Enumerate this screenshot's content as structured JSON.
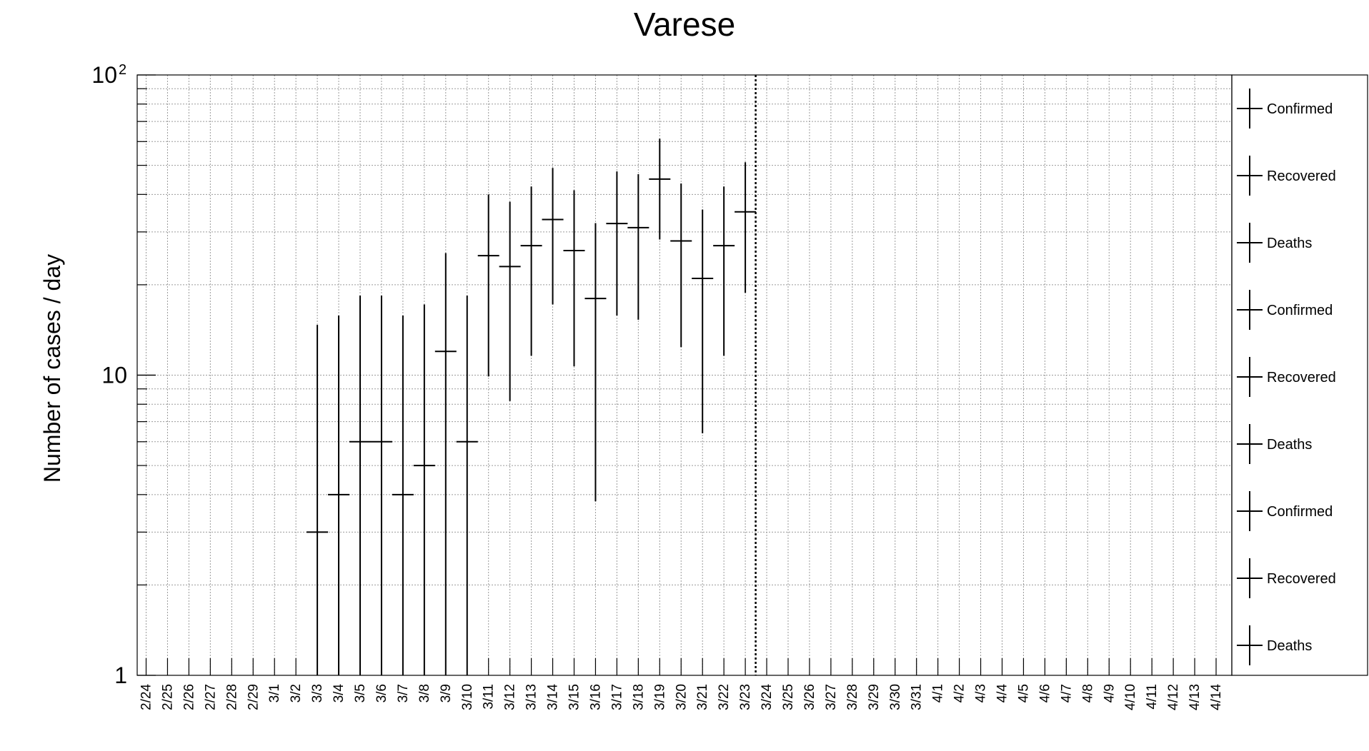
{
  "chart_data": {
    "type": "scatter",
    "title": "Varese",
    "xlabel": "",
    "ylabel": "Number of cases / day",
    "y_scale": "log",
    "ylim": [
      1,
      100
    ],
    "y_tick_labels": [
      {
        "value": 1,
        "base": "1",
        "exp": ""
      },
      {
        "value": 10,
        "base": "10",
        "exp": ""
      },
      {
        "value": 100,
        "base": "10",
        "exp": "2"
      }
    ],
    "grid": true,
    "legend_position": "right",
    "categories": [
      "2/24",
      "2/25",
      "2/26",
      "2/27",
      "2/28",
      "2/29",
      "3/1",
      "3/2",
      "3/3",
      "3/4",
      "3/5",
      "3/6",
      "3/7",
      "3/8",
      "3/9",
      "3/10",
      "3/11",
      "3/12",
      "3/13",
      "3/14",
      "3/15",
      "3/16",
      "3/17",
      "3/18",
      "3/19",
      "3/20",
      "3/21",
      "3/22",
      "3/23",
      "3/24",
      "3/25",
      "3/26",
      "3/27",
      "3/28",
      "3/29",
      "3/30",
      "3/31",
      "4/1",
      "4/2",
      "4/3",
      "4/4",
      "4/5",
      "4/6",
      "4/7",
      "4/8",
      "4/9",
      "4/10",
      "4/11",
      "4/12",
      "4/13",
      "4/14"
    ],
    "vertical_marker": "3/23",
    "series": [
      {
        "name": "Confirmed",
        "color": "#000000",
        "points": [
          {
            "x": "3/3",
            "y": 3,
            "lo": 1,
            "hi": 14.7
          },
          {
            "x": "3/4",
            "y": 4,
            "lo": 1,
            "hi": 15.8
          },
          {
            "x": "3/5",
            "y": 6,
            "lo": 1,
            "hi": 18.4
          },
          {
            "x": "3/6",
            "y": 6,
            "lo": 1,
            "hi": 18.4
          },
          {
            "x": "3/7",
            "y": 4,
            "lo": 1,
            "hi": 15.8
          },
          {
            "x": "3/8",
            "y": 5,
            "lo": 1,
            "hi": 17.2
          },
          {
            "x": "3/9",
            "y": 12,
            "lo": 1,
            "hi": 25.5
          },
          {
            "x": "3/10",
            "y": 6,
            "lo": 1,
            "hi": 18.4
          },
          {
            "x": "3/11",
            "y": 25,
            "lo": 9.9,
            "hi": 40
          },
          {
            "x": "3/12",
            "y": 23,
            "lo": 8.2,
            "hi": 37.8
          },
          {
            "x": "3/13",
            "y": 27,
            "lo": 11.6,
            "hi": 42.5
          },
          {
            "x": "3/14",
            "y": 33,
            "lo": 17.2,
            "hi": 49
          },
          {
            "x": "3/15",
            "y": 26,
            "lo": 10.7,
            "hi": 41.3
          },
          {
            "x": "3/16",
            "y": 18,
            "lo": 3.8,
            "hi": 32.1
          },
          {
            "x": "3/17",
            "y": 32,
            "lo": 15.8,
            "hi": 47.7
          },
          {
            "x": "3/18",
            "y": 31,
            "lo": 15.3,
            "hi": 46.7
          },
          {
            "x": "3/19",
            "y": 45,
            "lo": 28.3,
            "hi": 61.3
          },
          {
            "x": "3/20",
            "y": 28,
            "lo": 12.4,
            "hi": 43.5
          },
          {
            "x": "3/21",
            "y": 21,
            "lo": 6.4,
            "hi": 35.6
          },
          {
            "x": "3/22",
            "y": 27,
            "lo": 11.6,
            "hi": 42.5
          },
          {
            "x": "3/23",
            "y": 35,
            "lo": 18.8,
            "hi": 51.2
          }
        ]
      }
    ],
    "legend": [
      "Confirmed",
      "Recovered",
      "Deaths",
      "Confirmed",
      "Recovered",
      "Deaths",
      "Confirmed",
      "Recovered",
      "Deaths"
    ]
  }
}
